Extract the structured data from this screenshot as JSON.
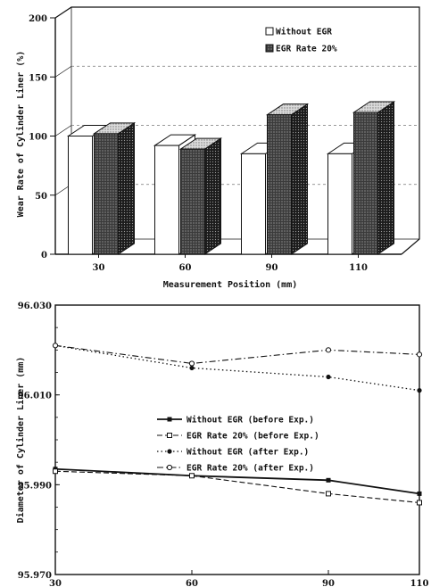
{
  "chart_data": [
    {
      "type": "bar",
      "xlabel": "Measurement Position (mm)",
      "ylabel": "Wear Rate of Cylinder Liner (%)",
      "categories": [
        "30",
        "60",
        "90",
        "110"
      ],
      "ylim": [
        0,
        200
      ],
      "yticks": [
        "0",
        "50",
        "100",
        "150",
        "200"
      ],
      "series": [
        {
          "name": "Without EGR",
          "values": [
            100,
            92,
            85,
            85
          ],
          "color": "#ffffff"
        },
        {
          "name": "EGR Rate 20%",
          "values": [
            102,
            89,
            118,
            120
          ],
          "color": "#444444"
        }
      ],
      "legend_position": "top-right",
      "style": "3d"
    },
    {
      "type": "line",
      "xlabel": "Measurement Position (mm)",
      "ylabel": "Diameter of Cylinder Liner (mm)",
      "x": [
        30,
        60,
        90,
        110
      ],
      "xticks": [
        "30",
        "60",
        "90",
        "110"
      ],
      "ylim": [
        95.97,
        96.03
      ],
      "yticks": [
        "96.030",
        "96.010",
        "95.990",
        "95.970"
      ],
      "series": [
        {
          "name": "Without EGR (before Exp.)",
          "values": [
            95.9935,
            95.992,
            95.991,
            95.988
          ],
          "marker": "filled-square",
          "dash": "solid"
        },
        {
          "name": "EGR Rate 20% (before Exp.)",
          "values": [
            95.993,
            95.992,
            95.988,
            95.986
          ],
          "marker": "open-square",
          "dash": "dashed"
        },
        {
          "name": "Without EGR (after Exp.)",
          "values": [
            96.021,
            96.016,
            96.014,
            96.011
          ],
          "marker": "filled-circle",
          "dash": "dotted"
        },
        {
          "name": "EGR Rate 20% (after Exp.)",
          "values": [
            96.021,
            96.017,
            96.02,
            96.019
          ],
          "marker": "open-circle",
          "dash": "dashdot"
        }
      ],
      "legend_position": "center"
    }
  ]
}
